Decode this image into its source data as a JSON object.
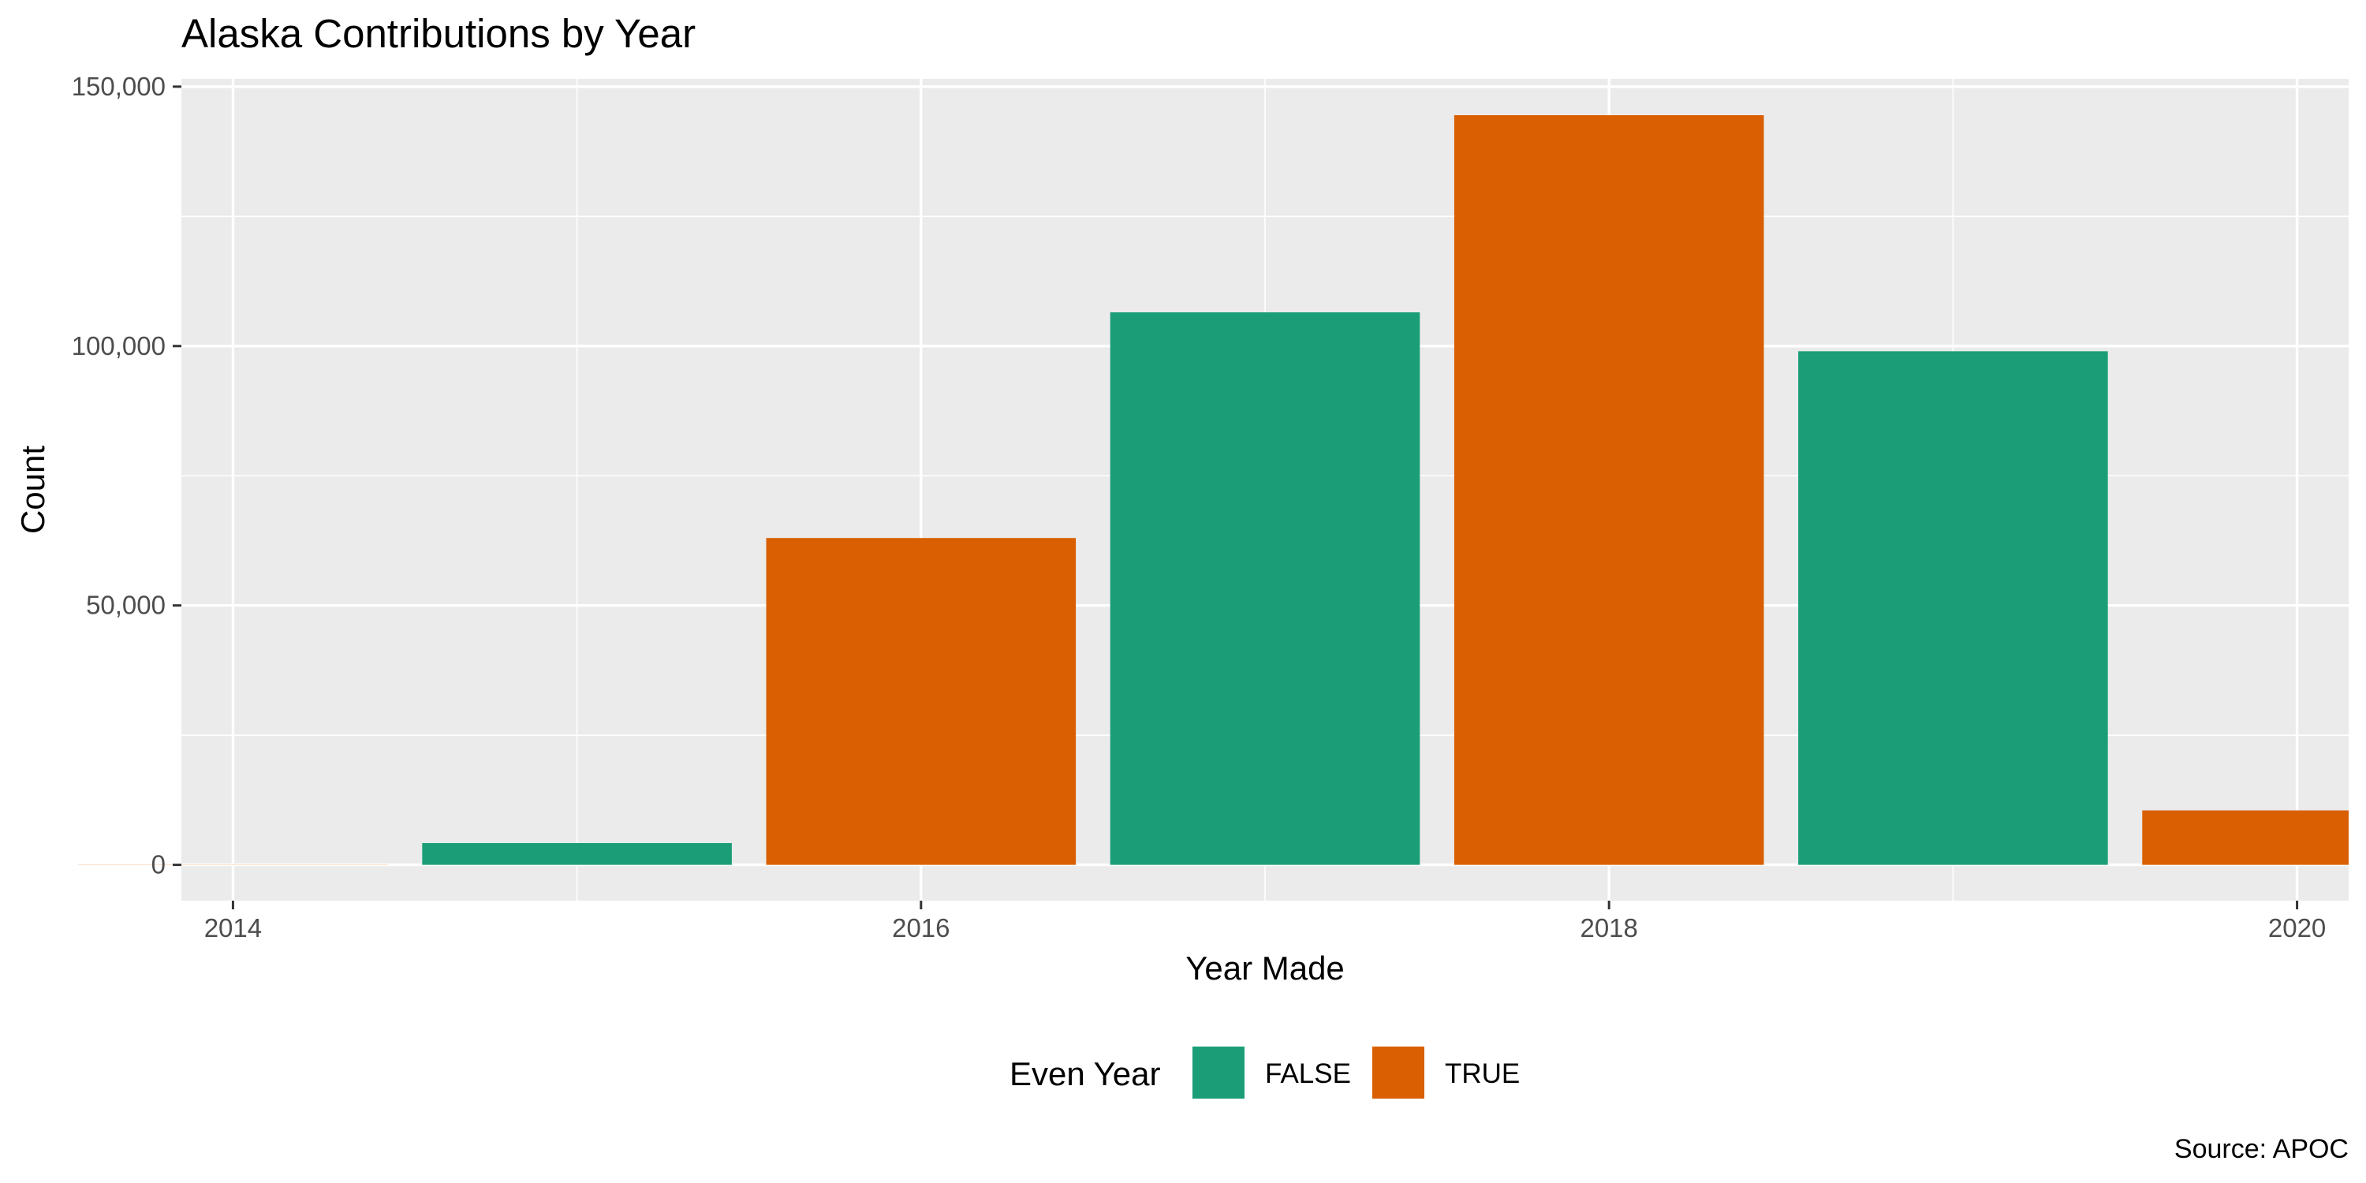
{
  "chart_data": {
    "type": "bar",
    "title": "Alaska Contributions by Year",
    "xlabel": "Year Made",
    "ylabel": "Count",
    "caption": "Source: APOC",
    "x": [
      2014,
      2015,
      2016,
      2017,
      2018,
      2019,
      2020
    ],
    "values": [
      30,
      4200,
      63000,
      106500,
      144500,
      99000,
      10500
    ],
    "even_year": [
      "TRUE",
      "FALSE",
      "TRUE",
      "FALSE",
      "TRUE",
      "FALSE",
      "TRUE"
    ],
    "x_ticks": [
      "2014",
      "2016",
      "2018",
      "2020"
    ],
    "y_ticks": [
      "0",
      "50,000",
      "100,000",
      "150,000"
    ],
    "ylim": [
      0,
      150000
    ],
    "xlim": [
      2013.85,
      2020.15
    ],
    "grid": true,
    "legend": {
      "title": "Even Year",
      "position": "bottom",
      "entries": [
        {
          "label": "FALSE",
          "color": "#1b9e77"
        },
        {
          "label": "TRUE",
          "color": "#d95f02"
        }
      ]
    },
    "colors": {
      "panel_background": "#ebebeb",
      "gridline": "#ffffff",
      "FALSE": "#1b9e77",
      "TRUE": "#d95f02"
    }
  }
}
